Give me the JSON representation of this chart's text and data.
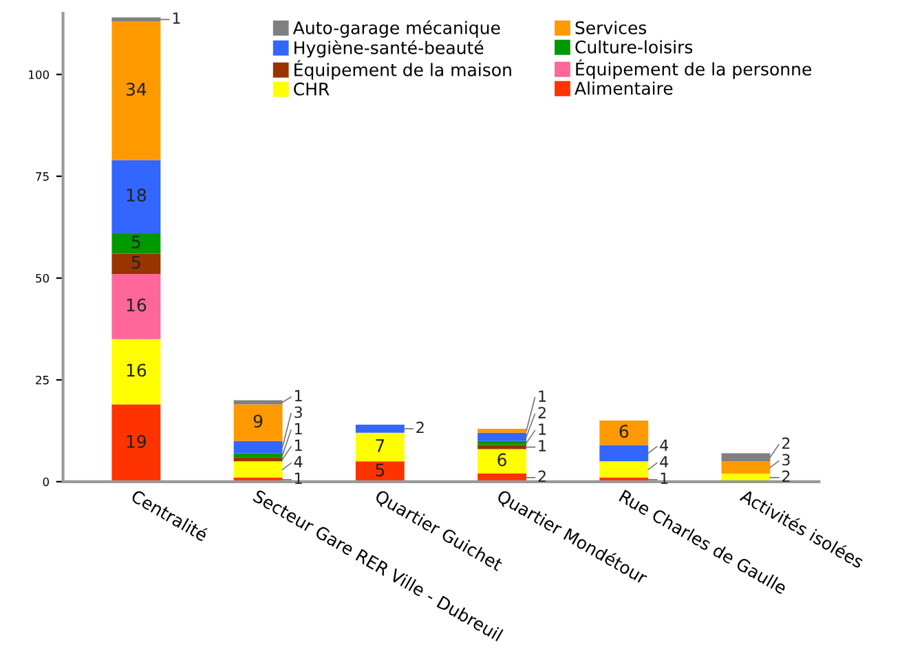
{
  "chart_data": {
    "type": "bar",
    "stacked": true,
    "data_labels": true,
    "legend": "top right",
    "grid": false,
    "categories": [
      "Centralité",
      "Secteur Gare RER Ville - Dubreuil",
      "Quartier Guichet",
      "Quartier Mondétour",
      "Rue Charles de Gaulle",
      "Activités isolées"
    ],
    "ylim": [
      0,
      115
    ],
    "yticks": [
      0,
      25,
      50,
      75,
      100
    ],
    "series": [
      {
        "name": "Alimentaire",
        "color": "#ff3300",
        "values": [
          19,
          1,
          5,
          2,
          1,
          null
        ]
      },
      {
        "name": "CHR",
        "color": "#ffff00",
        "values": [
          16,
          4,
          7,
          6,
          4,
          2
        ]
      },
      {
        "name": "Équipement de la personne",
        "color": "#ff6699",
        "values": [
          16,
          null,
          null,
          null,
          null,
          null
        ]
      },
      {
        "name": "Équipement de la maison",
        "color": "#993300",
        "values": [
          5,
          1,
          null,
          1,
          null,
          null
        ]
      },
      {
        "name": "Culture-loisirs",
        "color": "#009900",
        "values": [
          5,
          1,
          null,
          1,
          null,
          null
        ]
      },
      {
        "name": "Hygiène-santé-beauté",
        "color": "#3366ff",
        "values": [
          18,
          3,
          2,
          2,
          4,
          null
        ]
      },
      {
        "name": "Services",
        "color": "#ff9900",
        "values": [
          34,
          9,
          null,
          1,
          6,
          3
        ]
      },
      {
        "name": "Auto-garage mécanique",
        "color": "#808080",
        "values": [
          1,
          1,
          null,
          null,
          null,
          2
        ]
      }
    ]
  }
}
